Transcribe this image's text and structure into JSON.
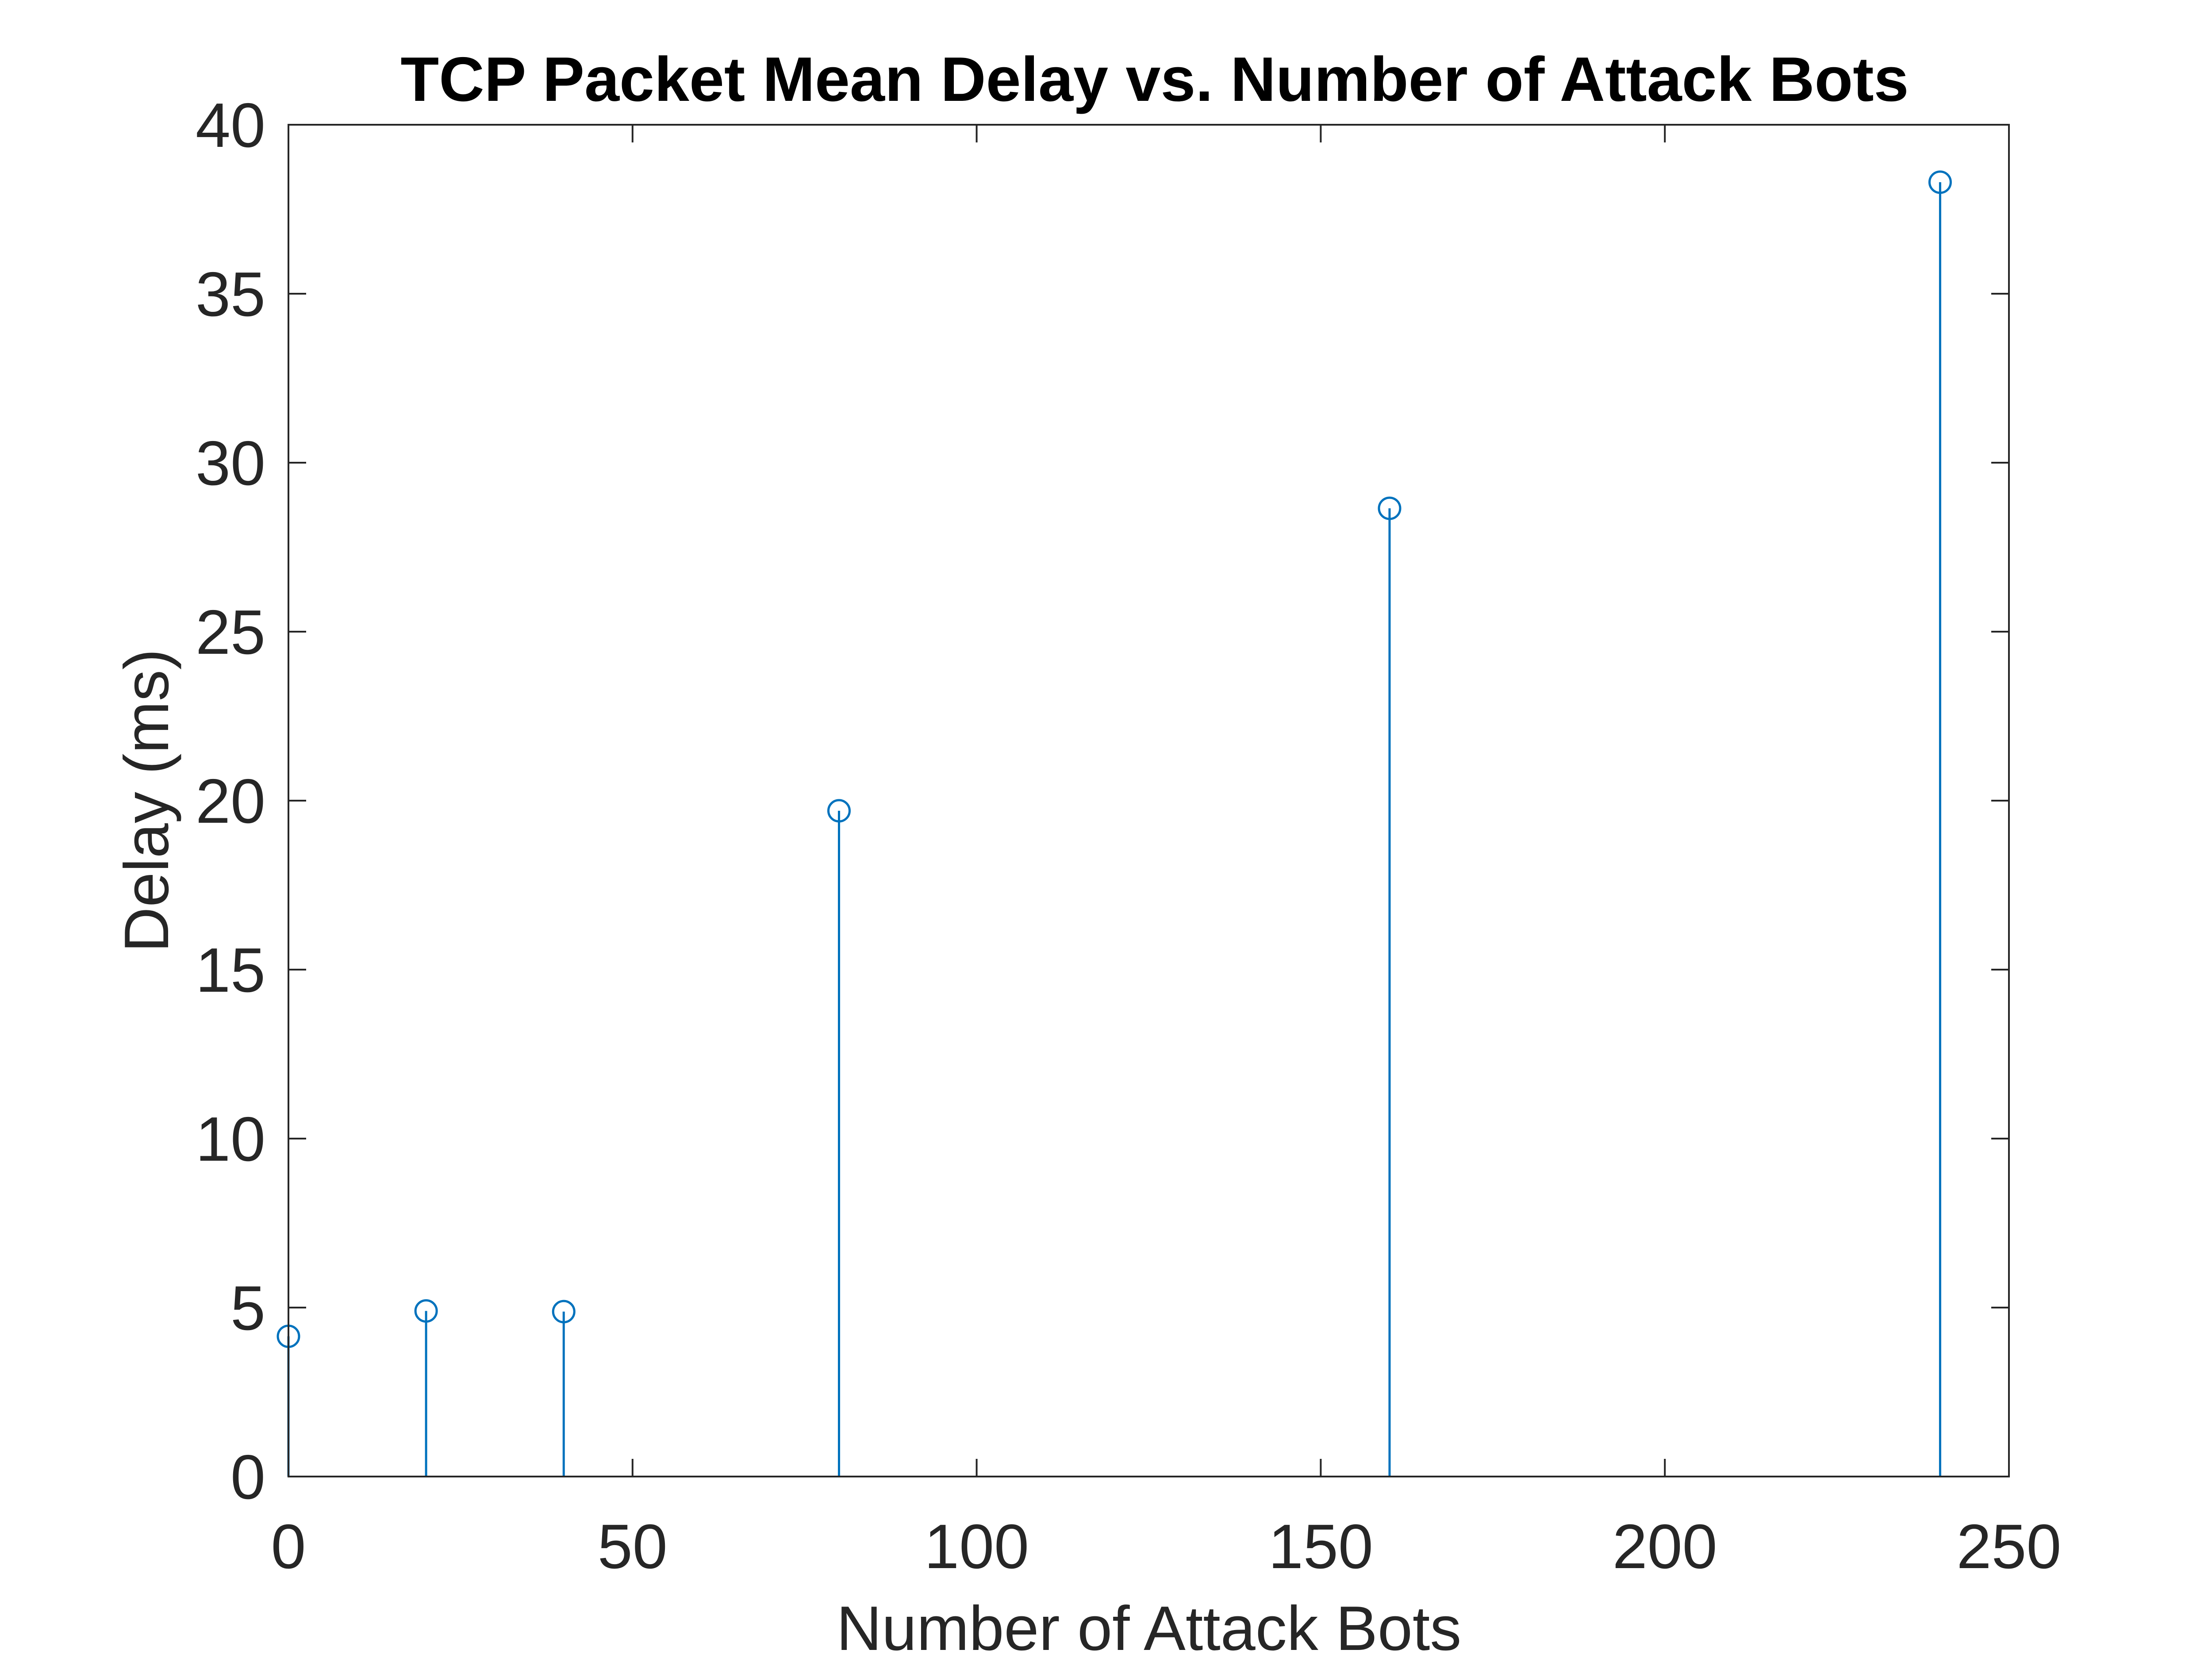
{
  "chart_data": {
    "type": "stem",
    "title": "TCP Packet Mean Delay vs. Number of Attack Bots",
    "xlabel": "Number of Attack Bots",
    "ylabel": "Delay (ms)",
    "xlim": [
      0,
      250
    ],
    "ylim": [
      0,
      40
    ],
    "xticks": [
      0,
      50,
      100,
      150,
      200,
      250
    ],
    "yticks": [
      0,
      5,
      10,
      15,
      20,
      25,
      30,
      35,
      40
    ],
    "x": [
      0,
      20,
      40,
      80,
      160,
      240
    ],
    "y": [
      4.15,
      4.9,
      4.88,
      19.7,
      28.65,
      38.3
    ],
    "marker": "circle",
    "grid": false,
    "legend": "none",
    "colors": {
      "series": "#0072BD",
      "axes": "#262626",
      "title": "#000000",
      "background": "#ffffff"
    }
  }
}
